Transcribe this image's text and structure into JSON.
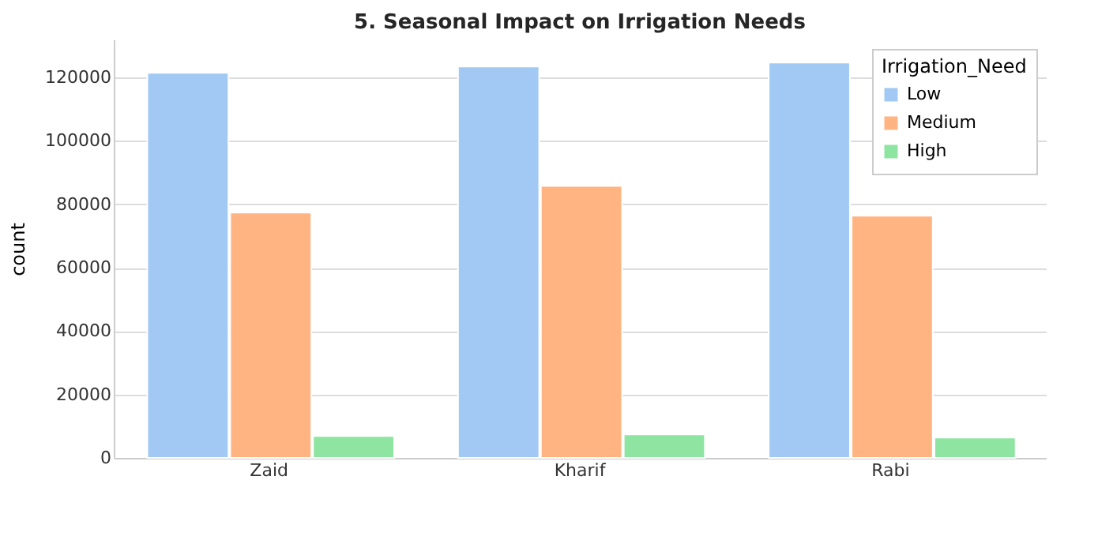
{
  "chart_data": {
    "type": "bar",
    "title": "5. Seasonal Impact on Irrigation Needs",
    "xlabel": null,
    "ylabel": "count",
    "legend_title": "Irrigation_Need",
    "categories": [
      "Zaid",
      "Kharif",
      "Rabi"
    ],
    "series": [
      {
        "name": "Low",
        "color": "#a1c9f4",
        "values": [
          121500,
          123500,
          124700
        ]
      },
      {
        "name": "Medium",
        "color": "#ffb482",
        "values": [
          77400,
          85800,
          76400
        ]
      },
      {
        "name": "High",
        "color": "#8de5a1",
        "values": [
          6900,
          7400,
          6400
        ]
      }
    ],
    "ylim": [
      0,
      132000
    ],
    "yticks": [
      0,
      20000,
      40000,
      60000,
      80000,
      100000,
      120000
    ],
    "grid": "y",
    "legend": "top right"
  }
}
